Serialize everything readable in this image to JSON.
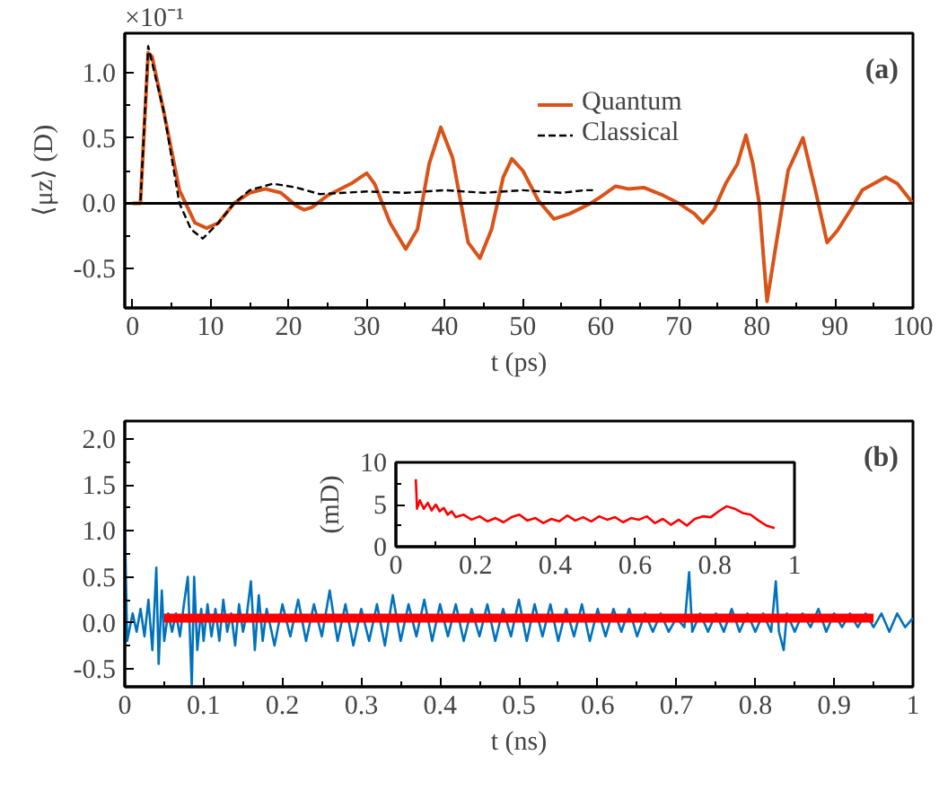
{
  "chart_data": [
    {
      "type": "line",
      "xlabel": "t (ps)",
      "ylabel": "⟨μz⟩ (D)",
      "annotations": [
        "×10⁻¹",
        "(a)"
      ],
      "xlim": [
        -1,
        100
      ],
      "ylim": [
        -0.8,
        1.3
      ],
      "xticks": [
        0,
        10,
        20,
        30,
        40,
        50,
        60,
        70,
        80,
        90,
        100
      ],
      "yticks": [
        {
          "value": -0.5,
          "label": "-0.5"
        },
        {
          "value": 0,
          "label": "0.0"
        },
        {
          "value": 0.5,
          "label": "0.5"
        },
        {
          "value": 1,
          "label": "1.0"
        }
      ],
      "legend": "top right",
      "grid": false,
      "ref_lines": [
        {
          "axis": "y",
          "value": 0,
          "color": "#000000"
        }
      ],
      "series": [
        {
          "name": "Quantum",
          "color": "#d95319",
          "line_style": "solid",
          "x": [
            0,
            1,
            2,
            2.5,
            4,
            6,
            8,
            9.5,
            11,
            13,
            15,
            17,
            19,
            21,
            22,
            23,
            25,
            28,
            30,
            31,
            33,
            35,
            36.5,
            38,
            39.5,
            41,
            43,
            44.5,
            46,
            47.5,
            48.6,
            50,
            52,
            54,
            56,
            58.7,
            60,
            61.9,
            63.5,
            65.5,
            68,
            70,
            72,
            73.1,
            74.5,
            76,
            77.5,
            78.6,
            79.5,
            80.3,
            81.3,
            82.5,
            84,
            85.9,
            87.5,
            89,
            90.3,
            92,
            93.5,
            95,
            96.5,
            98,
            100
          ],
          "values": [
            0,
            0,
            1.15,
            1.12,
            0.7,
            0.1,
            -0.15,
            -0.19,
            -0.15,
            0,
            0.08,
            0.11,
            0.08,
            -0.02,
            -0.05,
            -0.03,
            0.06,
            0.15,
            0.23,
            0.15,
            -0.15,
            -0.35,
            -0.2,
            0.3,
            0.58,
            0.35,
            -0.3,
            -0.42,
            -0.2,
            0.2,
            0.34,
            0.25,
            0.02,
            -0.12,
            -0.08,
            0,
            0.05,
            0.13,
            0.11,
            0.12,
            0.06,
            0,
            -0.08,
            -0.15,
            -0.05,
            0.15,
            0.3,
            0.52,
            0.3,
            0,
            -0.75,
            -0.3,
            0.25,
            0.5,
            0.1,
            -0.3,
            -0.21,
            -0.05,
            0.1,
            0.15,
            0.2,
            0.15,
            0
          ]
        },
        {
          "name": "Classical",
          "color": "#000000",
          "line_style": "dashed",
          "x": [
            0,
            1,
            2,
            4,
            6,
            7.5,
            9,
            11,
            13,
            15,
            18,
            21,
            24,
            27,
            30,
            35,
            40,
            45,
            50,
            55,
            58,
            59
          ],
          "values": [
            0,
            0,
            1.2,
            0.7,
            0,
            -0.2,
            -0.27,
            -0.15,
            0,
            0.1,
            0.15,
            0.12,
            0.07,
            0.08,
            0.09,
            0.08,
            0.1,
            0.08,
            0.1,
            0.08,
            0.1,
            0.1
          ]
        }
      ]
    },
    {
      "type": "line",
      "xlabel": "t (ns)",
      "annotations": [
        "(b)"
      ],
      "xlim": [
        0,
        1
      ],
      "ylim": [
        -0.7,
        2.2
      ],
      "xticks": [
        0,
        0.1,
        0.2,
        0.3,
        0.4,
        0.5,
        0.6,
        0.7,
        0.8,
        0.9,
        1
      ],
      "yticks": [
        {
          "value": -0.5,
          "label": "-0.5"
        },
        {
          "value": 0,
          "label": "0.0"
        },
        {
          "value": 0.5,
          "label": "0.5"
        },
        {
          "value": 1,
          "label": "1.0"
        },
        {
          "value": 1.5,
          "label": "1.5"
        },
        {
          "value": 2,
          "label": "2.0"
        }
      ],
      "grid": false,
      "series": [
        {
          "color": "#0072bd",
          "line_style": "solid",
          "x": [
            0,
            0.003,
            0.01,
            0.015,
            0.02,
            0.025,
            0.03,
            0.035,
            0.04,
            0.043,
            0.047,
            0.05,
            0.055,
            0.06,
            0.065,
            0.07,
            0.075,
            0.08,
            0.085,
            0.088,
            0.092,
            0.097,
            0.1,
            0.105,
            0.11,
            0.115,
            0.12,
            0.125,
            0.13,
            0.135,
            0.14,
            0.145,
            0.15,
            0.155,
            0.16,
            0.165,
            0.17,
            0.175,
            0.18,
            0.19,
            0.2,
            0.21,
            0.22,
            0.23,
            0.24,
            0.25,
            0.26,
            0.27,
            0.28,
            0.29,
            0.3,
            0.31,
            0.32,
            0.33,
            0.34,
            0.35,
            0.36,
            0.37,
            0.38,
            0.39,
            0.4,
            0.41,
            0.42,
            0.43,
            0.44,
            0.45,
            0.46,
            0.47,
            0.48,
            0.49,
            0.5,
            0.51,
            0.52,
            0.53,
            0.54,
            0.55,
            0.56,
            0.57,
            0.58,
            0.59,
            0.6,
            0.61,
            0.62,
            0.63,
            0.64,
            0.65,
            0.66,
            0.67,
            0.68,
            0.69,
            0.7,
            0.71,
            0.716,
            0.72,
            0.73,
            0.74,
            0.75,
            0.76,
            0.77,
            0.78,
            0.79,
            0.8,
            0.81,
            0.82,
            0.826,
            0.83,
            0.836,
            0.84,
            0.85,
            0.86,
            0.87,
            0.88,
            0.89,
            0.9,
            0.91,
            0.92,
            0.93,
            0.94,
            0.95,
            0.96,
            0.97,
            0.98,
            0.99,
            1
          ],
          "values": [
            1.1,
            -0.2,
            0.1,
            -0.1,
            0.15,
            -0.15,
            0.25,
            -0.3,
            0.6,
            -0.45,
            0.35,
            -0.2,
            0.1,
            -0.1,
            0.1,
            -0.15,
            0.2,
            0.5,
            -0.7,
            0.5,
            -0.3,
            0.15,
            -0.2,
            0.2,
            -0.15,
            0.15,
            -0.2,
            0.25,
            -0.1,
            0.1,
            -0.25,
            0.2,
            -0.1,
            0.1,
            0.45,
            -0.3,
            0.3,
            -0.2,
            0.15,
            -0.25,
            0.2,
            -0.15,
            0.25,
            -0.2,
            0.2,
            -0.15,
            0.35,
            -0.2,
            0.2,
            -0.25,
            0.15,
            -0.2,
            0.2,
            -0.25,
            0.3,
            -0.2,
            0.2,
            -0.15,
            0.25,
            -0.2,
            0.2,
            -0.15,
            0.2,
            -0.2,
            0.15,
            -0.15,
            0.2,
            -0.2,
            0.15,
            -0.15,
            0.25,
            -0.2,
            0.2,
            -0.15,
            0.2,
            -0.2,
            0.15,
            -0.15,
            0.2,
            -0.2,
            0.15,
            -0.15,
            0.15,
            -0.1,
            0.15,
            -0.15,
            0.1,
            -0.1,
            0.1,
            -0.1,
            0.05,
            -0.05,
            0.55,
            -0.1,
            0.1,
            -0.1,
            0.1,
            -0.1,
            0.15,
            -0.1,
            0.1,
            -0.1,
            0.1,
            -0.1,
            0.45,
            -0.1,
            -0.3,
            0.1,
            -0.1,
            0.1,
            -0.05,
            0.15,
            -0.1,
            0.1,
            -0.05,
            0.1,
            -0.05,
            0.1,
            -0.05,
            0.1,
            -0.1,
            0.1,
            -0.05,
            0.05
          ]
        },
        {
          "color": "#ff0000",
          "line_style": "solid",
          "x": [
            0.05,
            0.5,
            0.95
          ],
          "values": [
            0.05,
            0.05,
            0.05
          ]
        }
      ]
    },
    {
      "type": "line",
      "ylabel": "(mD)",
      "xlim": [
        0,
        1
      ],
      "ylim": [
        0,
        10
      ],
      "xticks": [
        0,
        0.2,
        0.4,
        0.6,
        0.8,
        1
      ],
      "yticks": [
        0,
        5,
        10
      ],
      "grid": false,
      "series": [
        {
          "color": "#ff0000",
          "line_style": "solid",
          "x": [
            0.05,
            0.053,
            0.06,
            0.07,
            0.08,
            0.09,
            0.1,
            0.11,
            0.12,
            0.13,
            0.14,
            0.15,
            0.17,
            0.19,
            0.21,
            0.23,
            0.25,
            0.27,
            0.29,
            0.31,
            0.33,
            0.35,
            0.37,
            0.39,
            0.41,
            0.43,
            0.45,
            0.47,
            0.49,
            0.51,
            0.53,
            0.55,
            0.57,
            0.59,
            0.61,
            0.63,
            0.65,
            0.67,
            0.69,
            0.71,
            0.73,
            0.75,
            0.77,
            0.79,
            0.81,
            0.83,
            0.85,
            0.87,
            0.89,
            0.91,
            0.93,
            0.95
          ],
          "values": [
            8,
            4.5,
            5.5,
            4.5,
            5.2,
            4.3,
            5,
            4.2,
            4.6,
            3.8,
            4.2,
            3.5,
            3.8,
            3.2,
            3.6,
            3,
            3.4,
            2.9,
            3.5,
            3.8,
            3.1,
            3.4,
            2.8,
            3.3,
            3,
            3.7,
            3.1,
            3.5,
            3,
            3.6,
            3.2,
            3.5,
            2.9,
            3.4,
            3.2,
            3.6,
            2.8,
            3.3,
            2.6,
            3.2,
            2.5,
            3.3,
            3.6,
            3.5,
            4.2,
            4.8,
            4.5,
            4,
            3.8,
            3.1,
            2.5,
            2.2
          ]
        }
      ]
    }
  ]
}
